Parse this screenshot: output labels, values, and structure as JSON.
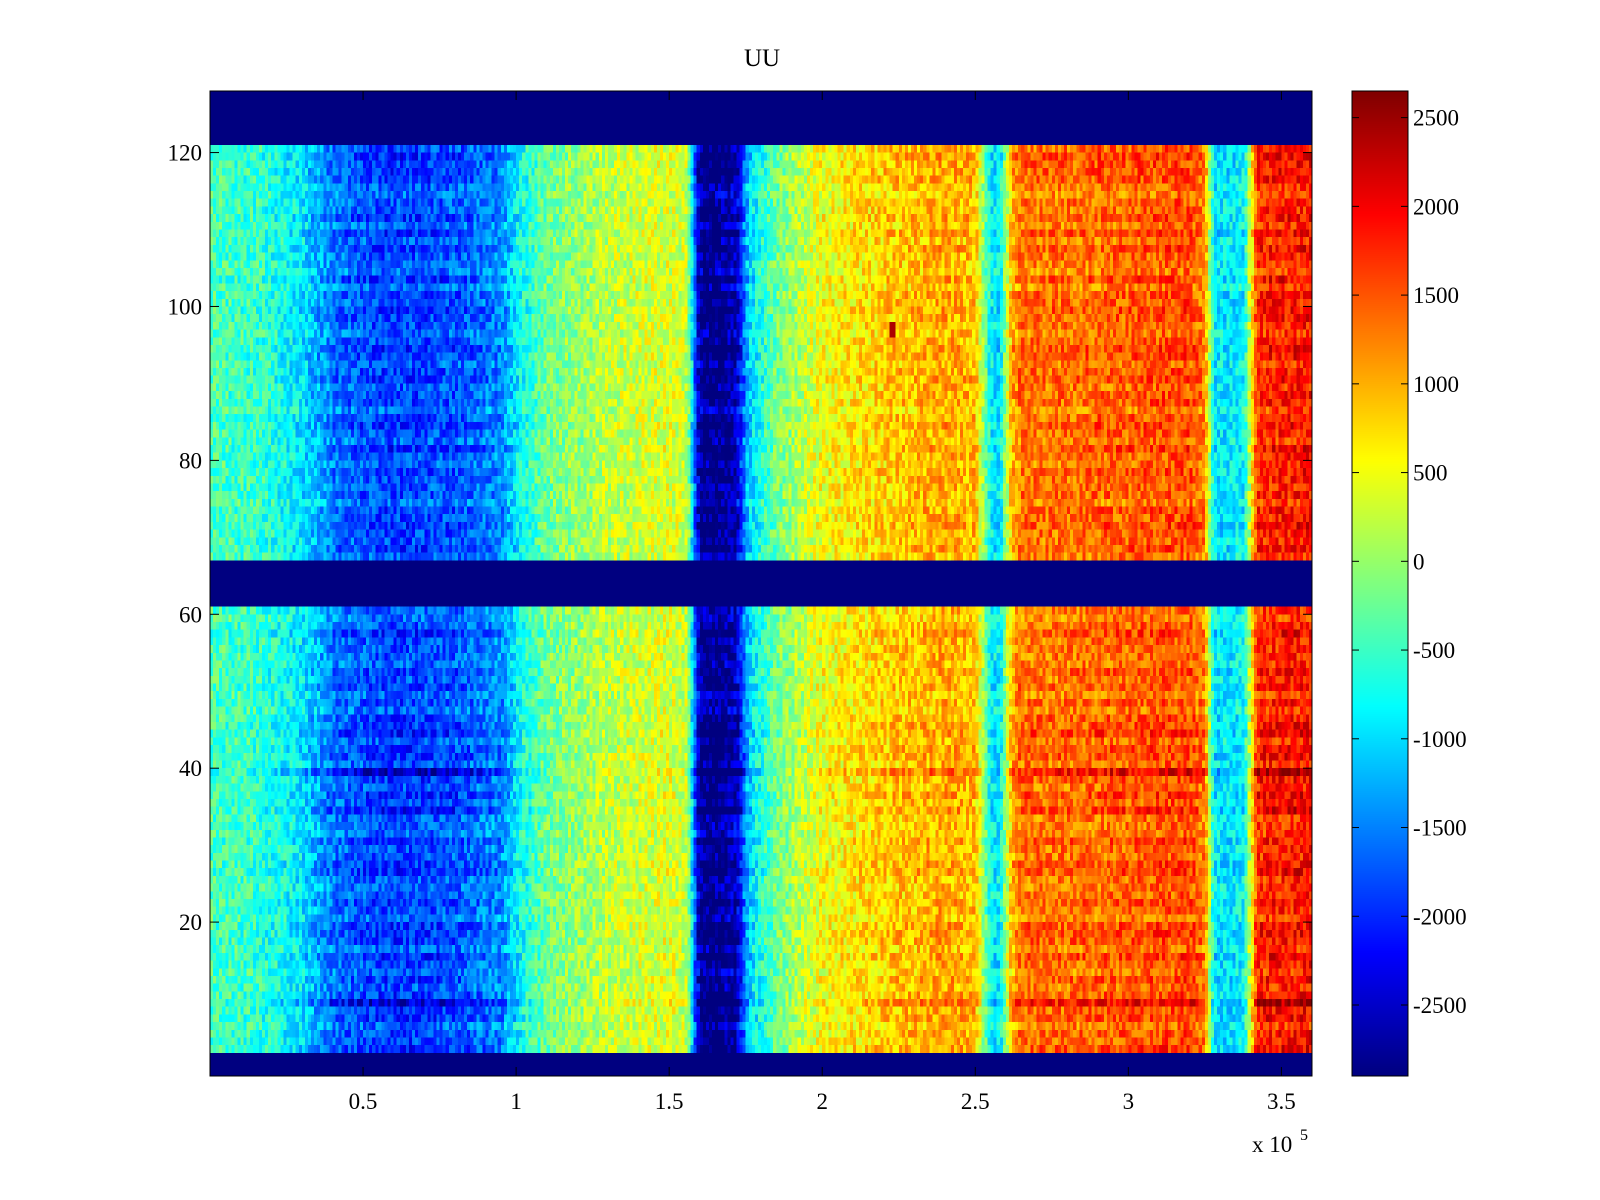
{
  "chart_data": {
    "type": "heatmap",
    "title": "UU",
    "xlabel": "",
    "ylabel": "",
    "x_multiplier_label": "x 10",
    "x_multiplier_exponent": "5",
    "xlim": [
      0,
      3.6
    ],
    "ylim": [
      0,
      128
    ],
    "xticks": [
      0.5,
      1,
      1.5,
      2,
      2.5,
      3,
      3.5
    ],
    "xtick_labels": [
      "0.5",
      "1",
      "1.5",
      "2",
      "2.5",
      "3",
      "3.5"
    ],
    "yticks": [
      20,
      40,
      60,
      80,
      100,
      120
    ],
    "ytick_labels": [
      "20",
      "40",
      "60",
      "80",
      "100",
      "120"
    ],
    "colormap": "jet",
    "colorbar": {
      "clim": [
        -2900,
        2650
      ],
      "ticks": [
        -2500,
        -2000,
        -1500,
        -1000,
        -500,
        0,
        500,
        1000,
        1500,
        2000,
        2500
      ],
      "tick_labels": [
        "-2500",
        "-2000",
        "-1500",
        "-1000",
        "-500",
        "0",
        "500",
        "1000",
        "1500",
        "2000",
        "2500"
      ]
    },
    "masked_rows_value": -2900,
    "masked_row_ranges": [
      [
        0,
        3
      ],
      [
        61,
        67
      ],
      [
        121,
        128
      ]
    ],
    "column_profile_x": [
      0,
      0.15,
      0.3,
      0.4,
      0.5,
      0.6,
      0.8,
      0.95,
      1.02,
      1.1,
      1.3,
      1.5,
      1.56,
      1.6,
      1.65,
      1.72,
      1.76,
      1.85,
      2.0,
      2.2,
      2.4,
      2.5,
      2.55,
      2.58,
      2.62,
      2.65,
      2.8,
      3.0,
      3.2,
      3.25,
      3.28,
      3.33,
      3.38,
      3.42,
      3.6
    ],
    "column_profile_value": [
      -400,
      -500,
      -900,
      -1500,
      -1700,
      -1800,
      -1700,
      -1400,
      -700,
      -200,
      200,
      400,
      200,
      -2700,
      -2800,
      -2500,
      -1000,
      -200,
      500,
      800,
      1000,
      900,
      -800,
      -900,
      1000,
      1300,
      1300,
      1400,
      1500,
      1200,
      -900,
      -900,
      -800,
      1700,
      1800
    ],
    "strong_rows": [
      {
        "y": 9,
        "gain": 1.4
      },
      {
        "y": 15,
        "gain": 1.15
      },
      {
        "y": 34,
        "gain": 1.2
      },
      {
        "y": 39,
        "gain": 1.45
      },
      {
        "y": 44,
        "gain": 1.2
      },
      {
        "y": 116,
        "gain": 1.1
      }
    ],
    "hotspot": {
      "x": 2.23,
      "y": 97,
      "value": 2400
    }
  }
}
